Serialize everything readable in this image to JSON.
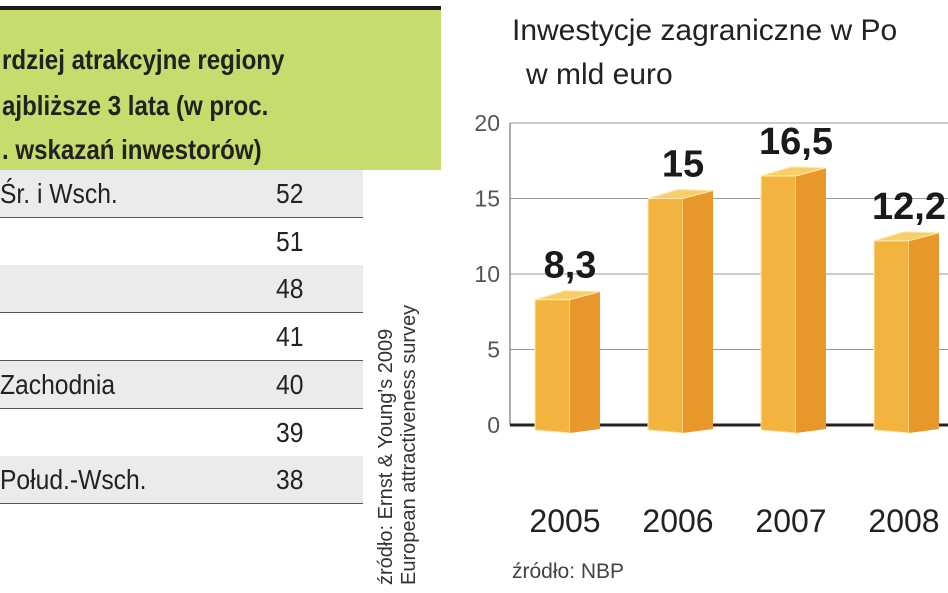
{
  "table": {
    "header_lines": [
      "rdziej atrakcyjne regiony",
      "ajbliższe 3 lata (w proc.",
      ". wskazań inwestorów)"
    ],
    "rows": [
      {
        "label": "Śr. i Wsch.",
        "value": "52"
      },
      {
        "label": "",
        "value": "51"
      },
      {
        "label": "",
        "value": "48"
      },
      {
        "label": "",
        "value": "41"
      },
      {
        "label": "Zachodnia",
        "value": "40"
      },
      {
        "label": "",
        "value": "39"
      },
      {
        "label": "Połud.-Wsch.",
        "value": "38"
      }
    ],
    "source_lines": [
      "źródło: Ernst & Young's 2009",
      "European attractiveness survey"
    ]
  },
  "chart_data": {
    "type": "bar",
    "title": "Inwestycje zagraniczne w Po",
    "unit": "w mld euro",
    "categories": [
      "2005",
      "2006",
      "2007",
      "2008"
    ],
    "values": [
      8.3,
      15,
      16.5,
      12.2
    ],
    "data_labels": [
      "8,3",
      "15",
      "16,5",
      "12,2"
    ],
    "yticks": [
      "0",
      "5",
      "10",
      "15",
      "20"
    ],
    "ylim": [
      0,
      20
    ],
    "grid": true,
    "source": "źródło: NBP",
    "colors": {
      "bar_front": "#f2b43f",
      "bar_side": "#e8982a",
      "bar_top": "#f7cf6a",
      "header_green": "#c6dc6c"
    }
  }
}
